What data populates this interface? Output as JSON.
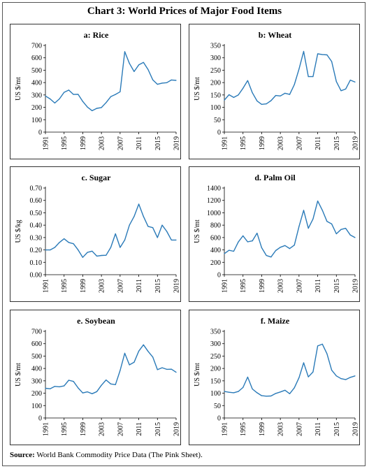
{
  "main_title": "Chart 3: World Prices of Major Food Items",
  "source": {
    "label": "Source:",
    "text": "World Bank Commodity Price Data (The Pink Sheet)."
  },
  "colors": {
    "line": "#2a7ab8",
    "axis": "#000000",
    "frame": "#333333"
  },
  "chart_data": [
    {
      "id": "rice",
      "type": "line",
      "title": "a: Rice",
      "ylabel": "US $/mt",
      "ylim": [
        0,
        700
      ],
      "yticks": [
        0,
        100,
        200,
        300,
        400,
        500,
        600,
        700
      ],
      "ytick_labels": [
        "0",
        "100",
        "200",
        "300",
        "400",
        "500",
        "600",
        "700"
      ],
      "xlim": [
        1991,
        2019
      ],
      "xticks": [
        1991,
        1995,
        1999,
        2003,
        2007,
        2011,
        2015,
        2019
      ],
      "x": [
        1991,
        1992,
        1993,
        1994,
        1995,
        1996,
        1997,
        1998,
        1999,
        2000,
        2001,
        2002,
        2003,
        2004,
        2005,
        2006,
        2007,
        2008,
        2009,
        2010,
        2011,
        2012,
        2013,
        2014,
        2015,
        2016,
        2017,
        2018,
        2019
      ],
      "values": [
        292,
        268,
        235,
        268,
        321,
        339,
        304,
        305,
        248,
        202,
        173,
        192,
        198,
        238,
        286,
        304,
        326,
        650,
        555,
        489,
        543,
        563,
        505,
        422,
        386,
        396,
        399,
        421,
        418
      ]
    },
    {
      "id": "wheat",
      "type": "line",
      "title": "b: Wheat",
      "ylabel": "US $/mt",
      "ylim": [
        0,
        350
      ],
      "yticks": [
        0,
        50,
        100,
        150,
        200,
        250,
        300,
        350
      ],
      "ytick_labels": [
        "0",
        "50",
        "100",
        "150",
        "200",
        "250",
        "300",
        "350"
      ],
      "xlim": [
        1991,
        2019
      ],
      "xticks": [
        1991,
        1995,
        1999,
        2003,
        2007,
        2011,
        2015,
        2019
      ],
      "x": [
        1991,
        1992,
        1993,
        1994,
        1995,
        1996,
        1997,
        1998,
        1999,
        2000,
        2001,
        2002,
        2003,
        2004,
        2005,
        2006,
        2007,
        2008,
        2009,
        2010,
        2011,
        2012,
        2013,
        2014,
        2015,
        2016,
        2017,
        2018,
        2019
      ],
      "values": [
        129,
        151,
        140,
        150,
        177,
        208,
        159,
        126,
        112,
        114,
        127,
        148,
        146,
        157,
        152,
        192,
        255,
        326,
        224,
        224,
        316,
        313,
        312,
        285,
        204,
        167,
        174,
        210,
        202
      ]
    },
    {
      "id": "sugar",
      "type": "line",
      "title": "c. Sugar",
      "ylabel": "US $/kg",
      "ylim": [
        0,
        0.7
      ],
      "yticks": [
        0,
        0.1,
        0.2,
        0.3,
        0.4,
        0.5,
        0.6,
        0.7
      ],
      "ytick_labels": [
        "0.00",
        "0.10",
        "0.20",
        "0.30",
        "0.40",
        "0.50",
        "0.60",
        "0.70"
      ],
      "xlim": [
        1991,
        2019
      ],
      "xticks": [
        1991,
        1995,
        1999,
        2003,
        2007,
        2011,
        2015,
        2019
      ],
      "x": [
        1991,
        1992,
        1993,
        1994,
        1995,
        1996,
        1997,
        1998,
        1999,
        2000,
        2001,
        2002,
        2003,
        2004,
        2005,
        2006,
        2007,
        2008,
        2009,
        2010,
        2011,
        2012,
        2013,
        2014,
        2015,
        2016,
        2017,
        2018,
        2019
      ],
      "values": [
        0.2,
        0.2,
        0.22,
        0.26,
        0.29,
        0.26,
        0.25,
        0.2,
        0.14,
        0.18,
        0.19,
        0.15,
        0.155,
        0.157,
        0.22,
        0.33,
        0.22,
        0.28,
        0.4,
        0.47,
        0.57,
        0.47,
        0.39,
        0.38,
        0.3,
        0.4,
        0.35,
        0.28,
        0.28
      ]
    },
    {
      "id": "palm-oil",
      "type": "line",
      "title": "d. Palm Oil",
      "ylabel": "US $/mt",
      "ylim": [
        0,
        1400
      ],
      "yticks": [
        0,
        200,
        400,
        600,
        800,
        1000,
        1200,
        1400
      ],
      "ytick_labels": [
        "0",
        "200",
        "400",
        "600",
        "800",
        "1000",
        "1200",
        "1400"
      ],
      "xlim": [
        1991,
        2019
      ],
      "xticks": [
        1991,
        1995,
        1999,
        2003,
        2007,
        2011,
        2015,
        2019
      ],
      "x": [
        1991,
        1992,
        1993,
        1994,
        1995,
        1996,
        1997,
        1998,
        1999,
        2000,
        2001,
        2002,
        2003,
        2004,
        2005,
        2006,
        2007,
        2008,
        2009,
        2010,
        2011,
        2012,
        2013,
        2014,
        2015,
        2016,
        2017,
        2018,
        2019
      ],
      "values": [
        340,
        394,
        378,
        528,
        628,
        531,
        546,
        671,
        436,
        310,
        286,
        390,
        443,
        471,
        422,
        478,
        780,
        1040,
        750,
        900,
        1190,
        1040,
        860,
        820,
        660,
        730,
        750,
        640,
        600
      ]
    },
    {
      "id": "soybean",
      "type": "line",
      "title": "e. Soybean",
      "ylabel": "US $/mt",
      "ylim": [
        0,
        700
      ],
      "yticks": [
        0,
        100,
        200,
        300,
        400,
        500,
        600,
        700
      ],
      "ytick_labels": [
        "0",
        "100",
        "200",
        "300",
        "400",
        "500",
        "600",
        "700"
      ],
      "xlim": [
        1991,
        2019
      ],
      "xticks": [
        1991,
        1995,
        1999,
        2003,
        2007,
        2011,
        2015,
        2019
      ],
      "x": [
        1991,
        1992,
        1993,
        1994,
        1995,
        1996,
        1997,
        1998,
        1999,
        2000,
        2001,
        2002,
        2003,
        2004,
        2005,
        2006,
        2007,
        2008,
        2009,
        2010,
        2011,
        2012,
        2013,
        2014,
        2015,
        2016,
        2017,
        2018,
        2019
      ],
      "values": [
        240,
        236,
        255,
        252,
        259,
        305,
        295,
        243,
        202,
        211,
        196,
        213,
        264,
        307,
        275,
        269,
        384,
        523,
        429,
        450,
        540,
        591,
        538,
        492,
        390,
        406,
        393,
        394,
        369
      ]
    },
    {
      "id": "maize",
      "type": "line",
      "title": "f. Maize",
      "ylabel": "US $/mt",
      "ylim": [
        0,
        350
      ],
      "yticks": [
        0,
        50,
        100,
        150,
        200,
        250,
        300,
        350
      ],
      "ytick_labels": [
        "0",
        "50",
        "100",
        "150",
        "200",
        "250",
        "300",
        "350"
      ],
      "xlim": [
        1991,
        2019
      ],
      "xticks": [
        1991,
        1995,
        1999,
        2003,
        2007,
        2011,
        2015,
        2019
      ],
      "x": [
        1991,
        1992,
        1993,
        1994,
        1995,
        1996,
        1997,
        1998,
        1999,
        2000,
        2001,
        2002,
        2003,
        2004,
        2005,
        2006,
        2007,
        2008,
        2009,
        2010,
        2011,
        2012,
        2013,
        2014,
        2015,
        2016,
        2017,
        2018,
        2019
      ],
      "values": [
        107,
        104,
        102,
        107,
        123,
        165,
        117,
        102,
        90,
        88,
        89,
        99,
        105,
        112,
        98,
        122,
        163,
        223,
        166,
        186,
        291,
        298,
        259,
        193,
        170,
        159,
        155,
        164,
        170
      ]
    }
  ]
}
